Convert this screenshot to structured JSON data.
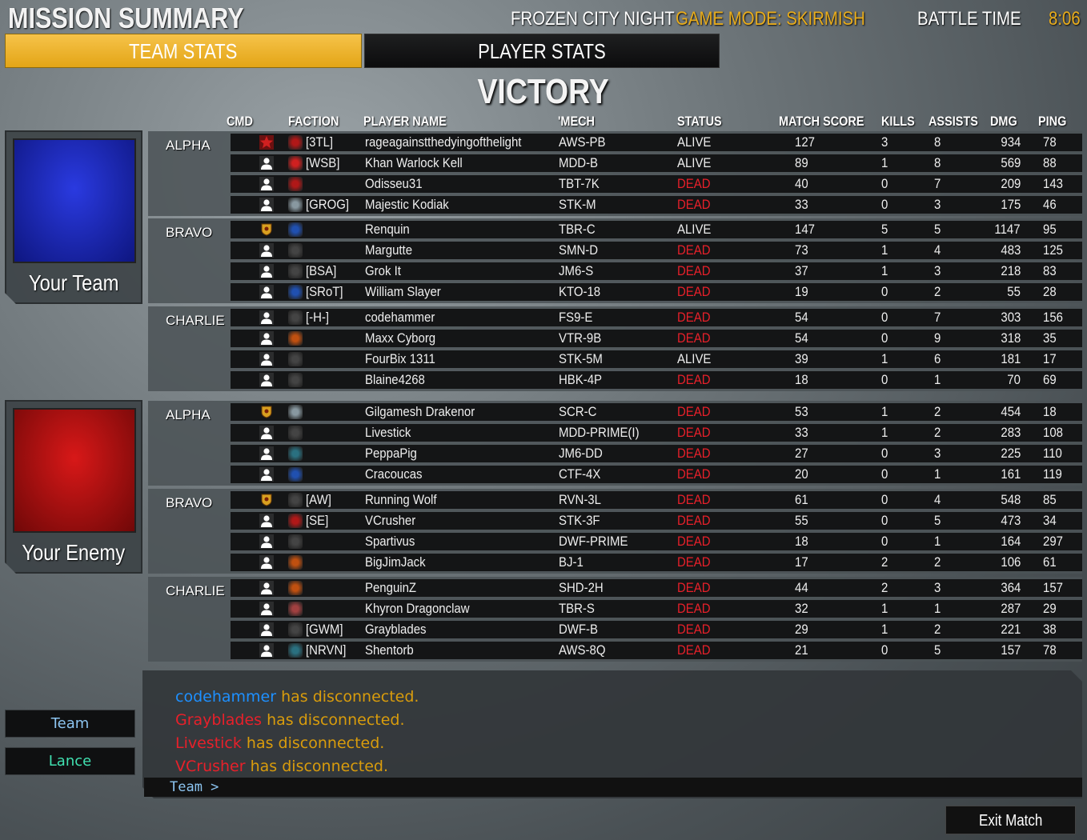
{
  "header": {
    "title": "MISSION SUMMARY",
    "map": "FROZEN CITY NIGHT",
    "mode": "GAME MODE: SKIRMISH",
    "battle_time_label": "BATTLE TIME",
    "battle_time": "8:06"
  },
  "tabs": {
    "team_stats": "TEAM STATS",
    "player_stats": "PLAYER STATS"
  },
  "result": "VICTORY",
  "columns": {
    "cmd": "CMD",
    "faction": "FACTION",
    "player": "PLAYER NAME",
    "mech": "'MECH",
    "status": "STATUS",
    "score": "MATCH SCORE",
    "kills": "KILLS",
    "assists": "ASSISTS",
    "dmg": "DMG",
    "ping": "PING"
  },
  "colors": {
    "accent": "#e8ac1c",
    "dead": "#e8202a",
    "your_team": "#1a28c8",
    "enemy_team": "#c01010",
    "chat_blue": "#1e90ff",
    "chat_red": "#e8202a",
    "chat_text": "#d99c0c"
  },
  "teams": [
    {
      "label": "Your Team",
      "flag_color": "#1a28c8",
      "groups": [
        {
          "name": "ALPHA",
          "rows": [
            {
              "cmd": "commander",
              "faction": "#b01818",
              "tag": "[3TL]",
              "name": "rageagainstthedyingofthelight",
              "mech": "AWS-PB",
              "status": "ALIVE",
              "score": 127,
              "kills": 3,
              "assists": 8,
              "dmg": 934,
              "ping": 78
            },
            {
              "cmd": "player",
              "faction": "#d02020",
              "tag": "[WSB]",
              "name": "Khan Warlock Kell",
              "mech": "MDD-B",
              "status": "ALIVE",
              "score": 89,
              "kills": 1,
              "assists": 8,
              "dmg": 569,
              "ping": 88
            },
            {
              "cmd": "player",
              "faction": "#b01818",
              "tag": "",
              "name": "Odisseu31",
              "mech": "TBT-7K",
              "status": "DEAD",
              "score": 40,
              "kills": 0,
              "assists": 7,
              "dmg": 209,
              "ping": 143
            },
            {
              "cmd": "player",
              "faction": "#8898a0",
              "tag": "[GROG]",
              "name": "Majestic Kodiak",
              "mech": "STK-M",
              "status": "DEAD",
              "score": 33,
              "kills": 0,
              "assists": 3,
              "dmg": 175,
              "ping": 46
            }
          ]
        },
        {
          "name": "BRAVO",
          "rows": [
            {
              "cmd": "lance-leader",
              "faction": "#2050b0",
              "tag": "",
              "name": "Renquin",
              "mech": "TBR-C",
              "status": "ALIVE",
              "score": 147,
              "kills": 5,
              "assists": 5,
              "dmg": 1147,
              "ping": 95
            },
            {
              "cmd": "player",
              "faction": "#444",
              "tag": "",
              "name": "Margutte",
              "mech": "SMN-D",
              "status": "DEAD",
              "score": 73,
              "kills": 1,
              "assists": 4,
              "dmg": 483,
              "ping": 125
            },
            {
              "cmd": "player",
              "faction": "#444",
              "tag": "[BSA]",
              "name": "Grok It",
              "mech": "JM6-S",
              "status": "DEAD",
              "score": 37,
              "kills": 1,
              "assists": 3,
              "dmg": 218,
              "ping": 83
            },
            {
              "cmd": "player",
              "faction": "#2050b0",
              "tag": "[SRoT]",
              "name": "William Slayer",
              "mech": "KTO-18",
              "status": "DEAD",
              "score": 19,
              "kills": 0,
              "assists": 2,
              "dmg": 55,
              "ping": 28
            }
          ]
        },
        {
          "name": "CHARLIE",
          "rows": [
            {
              "cmd": "player",
              "faction": "#444",
              "tag": "[-H-]",
              "name": "codehammer",
              "mech": "FS9-E",
              "status": "DEAD",
              "score": 54,
              "kills": 0,
              "assists": 7,
              "dmg": 303,
              "ping": 156
            },
            {
              "cmd": "player",
              "faction": "#c05010",
              "tag": "",
              "name": "Maxx Cyborg",
              "mech": "VTR-9B",
              "status": "DEAD",
              "score": 54,
              "kills": 0,
              "assists": 9,
              "dmg": 318,
              "ping": 35
            },
            {
              "cmd": "player",
              "faction": "#444",
              "tag": "",
              "name": "FourBix 1311",
              "mech": "STK-5M",
              "status": "ALIVE",
              "score": 39,
              "kills": 1,
              "assists": 6,
              "dmg": 181,
              "ping": 17
            },
            {
              "cmd": "player",
              "faction": "#444",
              "tag": "",
              "name": "Blaine4268",
              "mech": "HBK-4P",
              "status": "DEAD",
              "score": 18,
              "kills": 0,
              "assists": 1,
              "dmg": 70,
              "ping": 69
            }
          ]
        }
      ]
    },
    {
      "label": "Your Enemy",
      "flag_color": "#c01010",
      "groups": [
        {
          "name": "ALPHA",
          "rows": [
            {
              "cmd": "lance-leader",
              "faction": "#8898a0",
              "tag": "",
              "name": "Gilgamesh Drakenor",
              "mech": "SCR-C",
              "status": "DEAD",
              "score": 53,
              "kills": 1,
              "assists": 2,
              "dmg": 454,
              "ping": 18
            },
            {
              "cmd": "player",
              "faction": "#444",
              "tag": "",
              "name": "Livestick",
              "mech": "MDD-PRIME(I)",
              "status": "DEAD",
              "score": 33,
              "kills": 1,
              "assists": 2,
              "dmg": 283,
              "ping": 108
            },
            {
              "cmd": "player",
              "faction": "#2a7080",
              "tag": "",
              "name": "PeppaPig",
              "mech": "JM6-DD",
              "status": "DEAD",
              "score": 27,
              "kills": 0,
              "assists": 3,
              "dmg": 225,
              "ping": 110
            },
            {
              "cmd": "player",
              "faction": "#2050b0",
              "tag": "",
              "name": "Cracoucas",
              "mech": "CTF-4X",
              "status": "DEAD",
              "score": 20,
              "kills": 0,
              "assists": 1,
              "dmg": 161,
              "ping": 119
            }
          ]
        },
        {
          "name": "BRAVO",
          "rows": [
            {
              "cmd": "lance-leader",
              "faction": "#444",
              "tag": "[AW]",
              "name": "Running Wolf",
              "mech": "RVN-3L",
              "status": "DEAD",
              "score": 61,
              "kills": 0,
              "assists": 4,
              "dmg": 548,
              "ping": 85
            },
            {
              "cmd": "player",
              "faction": "#b01818",
              "tag": "[SE]",
              "name": "VCrusher",
              "mech": "STK-3F",
              "status": "DEAD",
              "score": 55,
              "kills": 0,
              "assists": 5,
              "dmg": 473,
              "ping": 34
            },
            {
              "cmd": "player",
              "faction": "#444",
              "tag": "",
              "name": "Spartivus",
              "mech": "DWF-PRIME",
              "status": "DEAD",
              "score": 18,
              "kills": 0,
              "assists": 1,
              "dmg": 164,
              "ping": 297
            },
            {
              "cmd": "player",
              "faction": "#c05010",
              "tag": "",
              "name": "BigJimJack",
              "mech": "BJ-1",
              "status": "DEAD",
              "score": 17,
              "kills": 2,
              "assists": 2,
              "dmg": 106,
              "ping": 61
            }
          ]
        },
        {
          "name": "CHARLIE",
          "rows": [
            {
              "cmd": "player",
              "faction": "#c05010",
              "tag": "",
              "name": "PenguinZ",
              "mech": "SHD-2H",
              "status": "DEAD",
              "score": 44,
              "kills": 2,
              "assists": 3,
              "dmg": 364,
              "ping": 157
            },
            {
              "cmd": "player",
              "faction": "#a04040",
              "tag": "",
              "name": "Khyron Dragonclaw",
              "mech": "TBR-S",
              "status": "DEAD",
              "score": 32,
              "kills": 1,
              "assists": 1,
              "dmg": 287,
              "ping": 29
            },
            {
              "cmd": "player",
              "faction": "#444",
              "tag": "[GWM]",
              "name": "Grayblades",
              "mech": "DWF-B",
              "status": "DEAD",
              "score": 29,
              "kills": 1,
              "assists": 2,
              "dmg": 221,
              "ping": 38
            },
            {
              "cmd": "player",
              "faction": "#2a7080",
              "tag": "[NRVN]",
              "name": "Shentorb",
              "mech": "AWS-8Q",
              "status": "DEAD",
              "score": 21,
              "kills": 0,
              "assists": 5,
              "dmg": 157,
              "ping": 78
            }
          ]
        }
      ]
    }
  ],
  "chat": {
    "messages": [
      {
        "name": "codehammer",
        "name_color": "#1e90ff",
        "text": "has disconnected."
      },
      {
        "name": "Grayblades",
        "name_color": "#e8202a",
        "text": "has disconnected."
      },
      {
        "name": "Livestick",
        "name_color": "#e8202a",
        "text": "has disconnected."
      },
      {
        "name": "VCrusher",
        "name_color": "#e8202a",
        "text": "has disconnected."
      }
    ],
    "input_prefix": "Team >"
  },
  "channels": {
    "team": "Team",
    "lance": "Lance"
  },
  "exit": "Exit Match"
}
